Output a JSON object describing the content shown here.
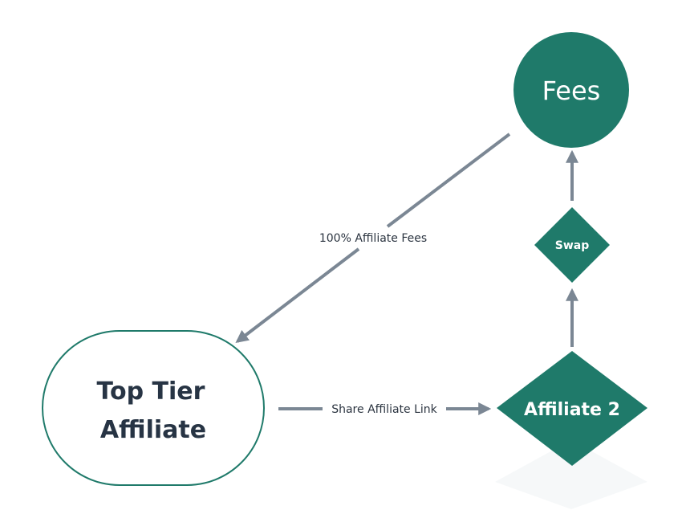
{
  "diagram": {
    "nodes": {
      "fees": {
        "label": "Fees"
      },
      "swap": {
        "label": "Swap"
      },
      "affiliate2": {
        "label": "Affiliate 2"
      },
      "top_tier": {
        "label_line1": "Top Tier",
        "label_line2": "Affiliate"
      }
    },
    "edges": {
      "fees_to_top": {
        "label": "100% Affiliate Fees"
      },
      "top_to_aff2": {
        "label": "Share Affiliate Link"
      }
    }
  },
  "colors": {
    "node_fill": "#1f7a6a",
    "arrow": "#7b8794",
    "text_dark": "#273444",
    "text_light": "#ffffff"
  }
}
